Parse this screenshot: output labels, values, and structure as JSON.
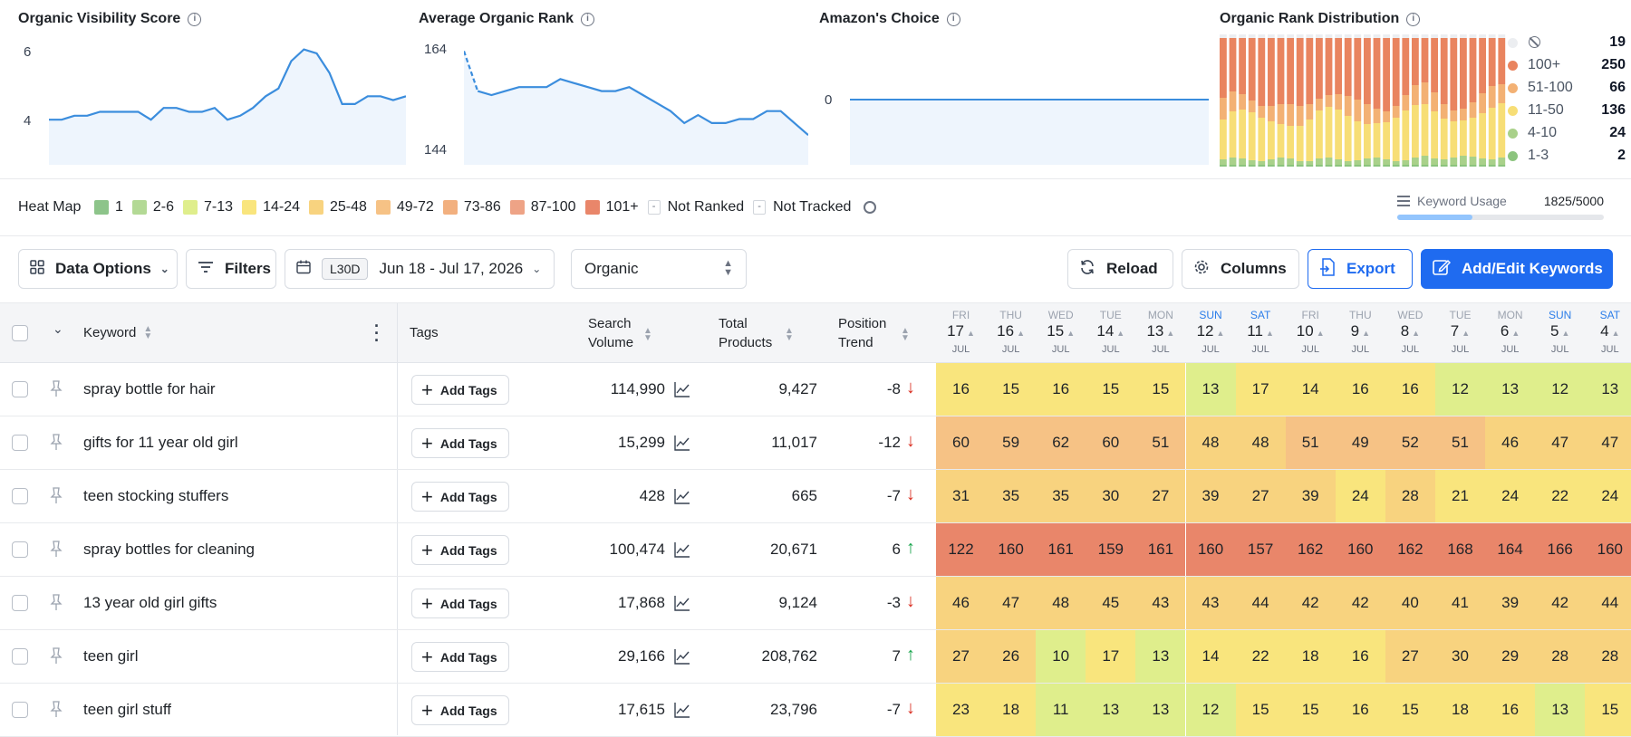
{
  "charts": {
    "visibility": {
      "title": "Organic Visibility Score",
      "yticks": [
        "6",
        "4"
      ],
      "values": [
        3.8,
        3.8,
        3.9,
        3.9,
        4.0,
        4.0,
        4.0,
        4.0,
        3.8,
        4.1,
        4.1,
        4.0,
        4.0,
        4.1,
        3.8,
        3.9,
        4.1,
        4.4,
        4.6,
        5.3,
        5.6,
        5.5,
        5.0,
        4.2,
        4.2,
        4.4,
        4.4,
        4.3,
        4.4
      ]
    },
    "avg_rank": {
      "title": "Average Organic Rank",
      "yticks": [
        "164",
        "144"
      ],
      "values": [
        164,
        154,
        153,
        154,
        155,
        155,
        155,
        157,
        156,
        155,
        154,
        154,
        155,
        153,
        151,
        149,
        146,
        148,
        146,
        146,
        147,
        147,
        149,
        149,
        146,
        143
      ]
    },
    "amazon_choice": {
      "title": "Amazon's Choice",
      "yticks": [
        "0"
      ]
    },
    "rank_distribution": {
      "title": "Organic Rank Distribution",
      "legend": [
        {
          "label": "",
          "icon": "ban-icon",
          "count": "19",
          "color": "#e5e7eb"
        },
        {
          "label": "100+",
          "count": "250",
          "color": "#e9845f"
        },
        {
          "label": "51-100",
          "count": "66",
          "color": "#f3b174"
        },
        {
          "label": "11-50",
          "count": "136",
          "color": "#f7de76"
        },
        {
          "label": "4-10",
          "count": "24",
          "color": "#a9d18a"
        },
        {
          "label": "1-3",
          "count": "2",
          "color": "#8cc47e"
        }
      ]
    }
  },
  "heatmap": {
    "title": "Heat Map",
    "items": [
      {
        "label": "1",
        "color": "#8dc48a"
      },
      {
        "label": "2-6",
        "color": "#b3d995"
      },
      {
        "label": "7-13",
        "color": "#dfee8c"
      },
      {
        "label": "14-24",
        "color": "#f9e57d"
      },
      {
        "label": "25-48",
        "color": "#f8d37f"
      },
      {
        "label": "49-72",
        "color": "#f6c285"
      },
      {
        "label": "73-86",
        "color": "#f2b07f"
      },
      {
        "label": "87-100",
        "color": "#eea386"
      },
      {
        "label": "101+",
        "color": "#e9866a"
      }
    ],
    "not_ranked": "Not Ranked",
    "not_tracked": "Not Tracked",
    "dash": "-",
    "keyword_usage_label": "Keyword Usage",
    "keyword_usage_value": "1825/5000",
    "keyword_usage_fraction": 0.365
  },
  "toolbar": {
    "data_options": "Data Options",
    "filters": "Filters",
    "range_badge": "L30D",
    "date_range": "Jun 18 - Jul 17, 2026",
    "mode": "Organic",
    "reload": "Reload",
    "columns": "Columns",
    "export": "Export",
    "add_edit": "Add/Edit Keywords"
  },
  "table": {
    "headers": {
      "keyword": "Keyword",
      "tags": "Tags",
      "search_volume_1": "Search",
      "search_volume_2": "Volume",
      "total_products_1": "Total",
      "total_products_2": "Products",
      "position_trend_1": "Position",
      "position_trend_2": "Trend"
    },
    "days": [
      {
        "name": "FRI",
        "num": "17",
        "mon": "JUL",
        "sun": false
      },
      {
        "name": "THU",
        "num": "16",
        "mon": "JUL",
        "sun": false
      },
      {
        "name": "WED",
        "num": "15",
        "mon": "JUL",
        "sun": false
      },
      {
        "name": "TUE",
        "num": "14",
        "mon": "JUL",
        "sun": false
      },
      {
        "name": "MON",
        "num": "13",
        "mon": "JUL",
        "sun": false
      },
      {
        "name": "SUN",
        "num": "12",
        "mon": "JUL",
        "sun": true
      },
      {
        "name": "SAT",
        "num": "11",
        "mon": "JUL",
        "sun": true
      },
      {
        "name": "FRI",
        "num": "10",
        "mon": "JUL",
        "sun": false
      },
      {
        "name": "THU",
        "num": "9",
        "mon": "JUL",
        "sun": false
      },
      {
        "name": "WED",
        "num": "8",
        "mon": "JUL",
        "sun": false
      },
      {
        "name": "TUE",
        "num": "7",
        "mon": "JUL",
        "sun": false
      },
      {
        "name": "MON",
        "num": "6",
        "mon": "JUL",
        "sun": false
      },
      {
        "name": "SUN",
        "num": "5",
        "mon": "JUL",
        "sun": true
      },
      {
        "name": "SAT",
        "num": "4",
        "mon": "JUL",
        "sun": true
      }
    ],
    "add_tags": "Add Tags",
    "rows": [
      {
        "keyword": "spray bottle for hair",
        "search_volume": "114,990",
        "total_products": "9,427",
        "trend": "-8",
        "dir": "down",
        "ranks": [
          16,
          15,
          16,
          15,
          15,
          13,
          17,
          14,
          16,
          16,
          12,
          13,
          12,
          13
        ]
      },
      {
        "keyword": "gifts for 11 year old girl",
        "search_volume": "15,299",
        "total_products": "11,017",
        "trend": "-12",
        "dir": "down",
        "ranks": [
          60,
          59,
          62,
          60,
          51,
          48,
          48,
          51,
          49,
          52,
          51,
          46,
          47,
          47
        ]
      },
      {
        "keyword": "teen stocking stuffers",
        "search_volume": "428",
        "total_products": "665",
        "trend": "-7",
        "dir": "down",
        "ranks": [
          31,
          35,
          35,
          30,
          27,
          39,
          27,
          39,
          24,
          28,
          21,
          24,
          22,
          24
        ]
      },
      {
        "keyword": "spray bottles for cleaning",
        "search_volume": "100,474",
        "total_products": "20,671",
        "trend": "6",
        "dir": "up",
        "ranks": [
          122,
          160,
          161,
          159,
          161,
          160,
          157,
          162,
          160,
          162,
          168,
          164,
          166,
          160
        ]
      },
      {
        "keyword": "13 year old girl gifts",
        "search_volume": "17,868",
        "total_products": "9,124",
        "trend": "-3",
        "dir": "down",
        "ranks": [
          46,
          47,
          48,
          45,
          43,
          43,
          44,
          42,
          42,
          40,
          41,
          39,
          42,
          44
        ]
      },
      {
        "keyword": "teen girl",
        "search_volume": "29,166",
        "total_products": "208,762",
        "trend": "7",
        "dir": "up",
        "ranks": [
          27,
          26,
          10,
          17,
          13,
          14,
          22,
          18,
          16,
          27,
          30,
          29,
          28,
          28
        ]
      },
      {
        "keyword": "teen girl stuff",
        "search_volume": "17,615",
        "total_products": "23,796",
        "trend": "-7",
        "dir": "down",
        "ranks": [
          23,
          18,
          11,
          13,
          13,
          12,
          15,
          15,
          16,
          15,
          18,
          16,
          13,
          15
        ]
      }
    ]
  }
}
